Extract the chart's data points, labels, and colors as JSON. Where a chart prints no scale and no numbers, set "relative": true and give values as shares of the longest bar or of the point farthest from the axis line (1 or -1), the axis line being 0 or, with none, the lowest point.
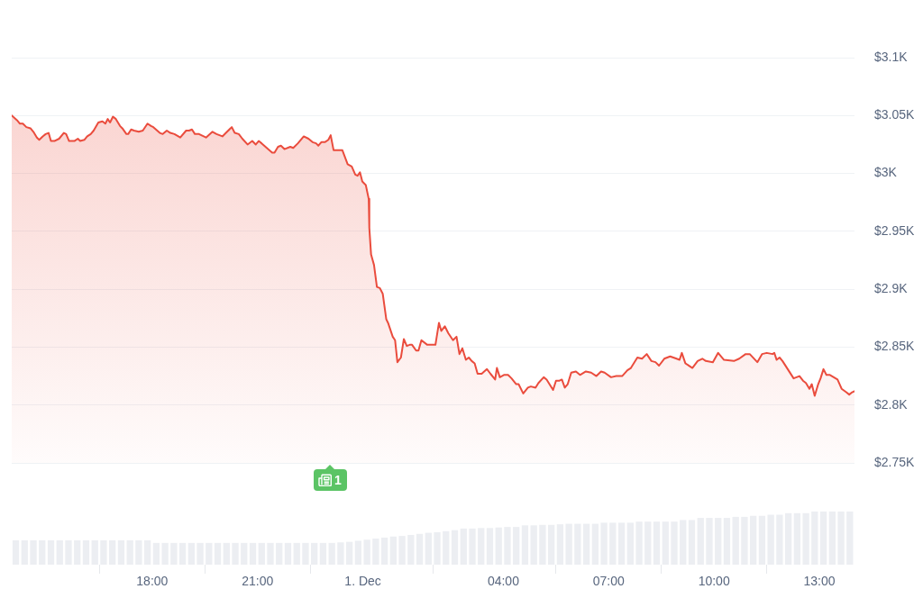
{
  "chart_data": [
    {
      "type": "area",
      "x": [
        "--11-30T14:00",
        "--11-30T14:09",
        "--11-30T14:14",
        "--11-30T14:19",
        "--11-30T14:25",
        "--11-30T14:32",
        "--11-30T14:37",
        "--11-30T14:43",
        "--11-30T14:47",
        "--11-30T14:53",
        "--11-30T14:58",
        "--11-30T15:03",
        "--11-30T15:07",
        "--11-30T15:13",
        "--11-30T15:21",
        "--11-30T15:29",
        "--11-30T15:33",
        "--11-30T15:38",
        "--11-30T15:47",
        "--11-30T15:53",
        "--11-30T15:57",
        "--11-30T16:04",
        "--11-30T16:09",
        "--11-30T16:15",
        "--11-30T16:20",
        "--11-30T16:28",
        "--11-30T16:35",
        "--11-30T16:40",
        "--11-30T16:44",
        "--11-30T16:48",
        "--11-30T16:53",
        "--11-30T16:58",
        "--11-30T17:05",
        "--11-30T17:09",
        "--11-30T17:16",
        "--11-30T17:19",
        "--11-30T17:24",
        "--11-30T17:29",
        "--11-30T17:37",
        "--11-30T17:44",
        "--11-30T17:52",
        "--11-30T17:58",
        "--11-30T18:02",
        "--11-30T18:13",
        "--11-30T18:18",
        "--11-30T18:25",
        "--11-30T18:31",
        "--11-30T18:38",
        "--11-30T18:48",
        "--11-30T18:58",
        "--11-30T19:03",
        "--11-30T19:08",
        "--11-30T19:13",
        "--11-30T19:20",
        "--11-30T19:32",
        "--11-30T19:43",
        "--11-30T19:50",
        "--11-30T20:00",
        "--11-30T20:06",
        "--11-30T20:16",
        "--11-30T20:21",
        "--11-30T20:28",
        "--11-30T20:34",
        "--11-30T20:43",
        "--11-30T20:51",
        "--11-30T20:57",
        "--11-30T21:02",
        "--11-30T21:07",
        "--11-30T21:18",
        "--11-30T21:25",
        "--11-30T21:29",
        "--11-30T21:35",
        "--11-30T21:40",
        "--11-30T21:46",
        "--11-30T21:56",
        "--11-30T22:01",
        "--11-30T22:09",
        "--11-30T22:19",
        "--11-30T22:27",
        "--11-30T22:34",
        "--11-30T22:40",
        "--11-30T22:44",
        "--11-30T22:49",
        "--11-30T22:55",
        "--11-30T23:01",
        "--11-30T23:05",
        "--11-30T23:10",
        "--11-30T23:16",
        "--11-30T23:25",
        "--11-30T23:34",
        "--11-30T23:41",
        "--11-30T23:47",
        "--11-30T23:51",
        "--11-30T23:55",
        "--11-30T23:59",
        "--12-01T00:05",
        "--12-01T00:10",
        "--12-01T00:11",
        "--12-01T00:14",
        "--12-01T00:19",
        "--12-01T00:24",
        "--12-01T00:29",
        "--12-01T00:34",
        "--12-01T00:40",
        "--12-01T00:43",
        "--12-01T00:51",
        "--12-01T00:55",
        "--12-01T00:59",
        "--12-01T01:05",
        "--12-01T01:10",
        "--12-01T01:15",
        "--12-01T01:20",
        "--12-01T01:24",
        "--12-01T01:31",
        "--12-01T01:35",
        "--12-01T01:40",
        "--12-01T01:50",
        "--12-01T02:04",
        "--12-01T02:10",
        "--12-01T02:14",
        "--12-01T02:20",
        "--12-01T02:26",
        "--12-01T02:34",
        "--12-01T02:40",
        "--12-01T02:45",
        "--12-01T02:50",
        "--12-01T02:56",
        "--12-01T03:01",
        "--12-01T03:06",
        "--12-01T03:11",
        "--12-01T03:16",
        "--12-01T03:23",
        "--12-01T03:32",
        "--12-01T03:38",
        "--12-01T03:46",
        "--12-01T03:49",
        "--12-01T03:54",
        "--12-01T04:01",
        "--12-01T04:08",
        "--12-01T04:14",
        "--12-01T04:22",
        "--12-01T04:26",
        "--12-01T04:34",
        "--12-01T04:42",
        "--12-01T04:47",
        "--12-01T04:55",
        "--12-01T05:00",
        "--12-01T05:09",
        "--12-01T05:14",
        "--12-01T05:25",
        "--12-01T05:30",
        "--12-01T05:36",
        "--12-01T05:40",
        "--12-01T05:45",
        "--12-01T05:50",
        "--12-01T05:56",
        "--12-01T06:04",
        "--12-01T06:11",
        "--12-01T06:21",
        "--12-01T06:30",
        "--12-01T06:39",
        "--12-01T06:47",
        "--12-01T06:53",
        "--12-01T07:04",
        "--12-01T07:13",
        "--12-01T07:23",
        "--12-01T07:32",
        "--12-01T07:38",
        "--12-01T07:49",
        "--12-01T07:57",
        "--12-01T08:05",
        "--12-01T08:13",
        "--12-01T08:20",
        "--12-01T08:26",
        "--12-01T08:35",
        "--12-01T08:45",
        "--12-01T08:56",
        "--12-01T09:01",
        "--12-01T09:05",
        "--12-01T09:11",
        "--12-01T09:23",
        "--12-01T09:32",
        "--12-01T09:40",
        "--12-01T09:46",
        "--12-01T09:58",
        "--12-01T10:07",
        "--12-01T10:17",
        "--12-01T10:34",
        "--12-01T10:43",
        "--12-01T10:54",
        "--12-01T11:01",
        "--12-01T11:14",
        "--12-01T11:22",
        "--12-01T11:30",
        "--12-01T11:40",
        "--12-01T11:43",
        "--12-01T11:47",
        "--12-01T11:52",
        "--12-01T11:57",
        "--12-01T12:16",
        "--12-01T12:26",
        "--12-01T12:32",
        "--12-01T12:37",
        "--12-01T12:43",
        "--12-01T12:47",
        "--12-01T12:52",
        "--12-01T12:58",
        "--12-01T13:02",
        "--12-01T13:07",
        "--12-01T13:12",
        "--12-01T13:18",
        "--12-01T13:31",
        "--12-01T13:38",
        "--12-01T13:46",
        "--12-01T13:51",
        "--12-01T13:56",
        "--12-01T14:00"
      ],
      "values": [
        3050,
        3046,
        3043,
        3043,
        3040,
        3039,
        3036,
        3031,
        3029,
        3032,
        3034,
        3035,
        3028,
        3028,
        3030,
        3035,
        3034,
        3028,
        3028,
        3030,
        3028,
        3029,
        3032,
        3034,
        3037,
        3044,
        3045,
        3043,
        3047,
        3044,
        3049,
        3047,
        3041,
        3039,
        3034,
        3034,
        3038,
        3037,
        3036,
        3037,
        3043,
        3041,
        3040,
        3035,
        3034,
        3037,
        3035,
        3034,
        3031,
        3037,
        3037,
        3038,
        3034,
        3034,
        3031,
        3036,
        3034,
        3032,
        3035,
        3040,
        3035,
        3034,
        3030,
        3025,
        3028,
        3025,
        3028,
        3026,
        3021,
        3018,
        3018,
        3023,
        3024,
        3021,
        3023,
        3022,
        3026,
        3032,
        3030,
        3027,
        3026,
        3024,
        3027,
        3027,
        3029,
        3033,
        3020,
        3020,
        3020,
        3008,
        3006,
        2999,
        2998,
        3001,
        2993,
        2990,
        2978,
        2953,
        2930,
        2921,
        2902,
        2901,
        2896,
        2874,
        2871,
        2859,
        2856,
        2837,
        2841,
        2857,
        2851,
        2852,
        2852,
        2847,
        2847,
        2856,
        2852,
        2852,
        2871,
        2864,
        2868,
        2862,
        2856,
        2859,
        2844,
        2849,
        2839,
        2841,
        2838,
        2836,
        2827,
        2827,
        2831,
        2827,
        2822,
        2832,
        2824,
        2826,
        2826,
        2823,
        2818,
        2818,
        2810,
        2815,
        2816,
        2815,
        2819,
        2824,
        2822,
        2813,
        2821,
        2821,
        2822,
        2815,
        2818,
        2828,
        2829,
        2826,
        2829,
        2828,
        2825,
        2829,
        2828,
        2824,
        2825,
        2825,
        2830,
        2832,
        2841,
        2840,
        2844,
        2838,
        2837,
        2834,
        2840,
        2842,
        2840,
        2839,
        2845,
        2836,
        2832,
        2838,
        2840,
        2838,
        2837,
        2845,
        2839,
        2838,
        2840,
        2844,
        2844,
        2837,
        2844,
        2845,
        2844,
        2845,
        2839,
        2841,
        2838,
        2823,
        2825,
        2821,
        2819,
        2814,
        2818,
        2808,
        2818,
        2823,
        2831,
        2826,
        2826,
        2822,
        2814,
        2811,
        2809,
        2811,
        2812
      ],
      "color": "#ea4c3d",
      "xlim": [
        "--11-30T14:00",
        "--12-01T14:00"
      ],
      "ylim": [
        2750,
        3100
      ],
      "yticks": [
        {
          "value": 2750,
          "label": "$2.75K"
        },
        {
          "value": 2800,
          "label": "$2.8K"
        },
        {
          "value": 2850,
          "label": "$2.85K"
        },
        {
          "value": 2900,
          "label": "$2.9K"
        },
        {
          "value": 2950,
          "label": "$2.95K"
        },
        {
          "value": 3000,
          "label": "$3K"
        },
        {
          "value": 3050,
          "label": "$3.05K"
        },
        {
          "value": 3100,
          "label": "$3.1K"
        }
      ],
      "grid": "y",
      "tick_labels": "y",
      "annotations": [
        "1"
      ]
    },
    {
      "type": "bar",
      "relative": true,
      "x": [
        "--11-30T14:07",
        "--11-30T14:22",
        "--11-30T14:37",
        "--11-30T14:52",
        "--11-30T15:07",
        "--11-30T15:22",
        "--11-30T15:37",
        "--11-30T15:52",
        "--11-30T16:07",
        "--11-30T16:22",
        "--11-30T16:37",
        "--11-30T16:52",
        "--11-30T17:07",
        "--11-30T17:22",
        "--11-30T17:37",
        "--11-30T17:52",
        "--11-30T18:07",
        "--11-30T18:22",
        "--11-30T18:37",
        "--11-30T18:52",
        "--11-30T19:07",
        "--11-30T19:22",
        "--11-30T19:37",
        "--11-30T19:52",
        "--11-30T20:07",
        "--11-30T20:22",
        "--11-30T20:37",
        "--11-30T20:52",
        "--11-30T21:07",
        "--11-30T21:22",
        "--11-30T21:37",
        "--11-30T21:52",
        "--11-30T22:07",
        "--11-30T22:22",
        "--11-30T22:37",
        "--11-30T22:52",
        "--11-30T23:07",
        "--11-30T23:22",
        "--11-30T23:37",
        "--11-30T23:52",
        "--12-01T00:07",
        "--12-01T00:22",
        "--12-01T00:37",
        "--12-01T00:52",
        "--12-01T01:07",
        "--12-01T01:22",
        "--12-01T01:37",
        "--12-01T01:52",
        "--12-01T02:07",
        "--12-01T02:22",
        "--12-01T02:37",
        "--12-01T02:52",
        "--12-01T03:07",
        "--12-01T03:22",
        "--12-01T03:37",
        "--12-01T03:52",
        "--12-01T04:07",
        "--12-01T04:22",
        "--12-01T04:37",
        "--12-01T04:52",
        "--12-01T05:07",
        "--12-01T05:22",
        "--12-01T05:37",
        "--12-01T05:52",
        "--12-01T06:07",
        "--12-01T06:22",
        "--12-01T06:37",
        "--12-01T06:52",
        "--12-01T07:07",
        "--12-01T07:22",
        "--12-01T07:37",
        "--12-01T07:52",
        "--12-01T08:07",
        "--12-01T08:22",
        "--12-01T08:37",
        "--12-01T08:52",
        "--12-01T09:07",
        "--12-01T09:22",
        "--12-01T09:37",
        "--12-01T09:52",
        "--12-01T10:07",
        "--12-01T10:22",
        "--12-01T10:37",
        "--12-01T10:52",
        "--12-01T11:07",
        "--12-01T11:22",
        "--12-01T11:37",
        "--12-01T11:52",
        "--12-01T12:07",
        "--12-01T12:22",
        "--12-01T12:37",
        "--12-01T12:52",
        "--12-01T13:07",
        "--12-01T13:22",
        "--12-01T13:37",
        "--12-01T13:52"
      ],
      "values": [
        0.46,
        0.46,
        0.46,
        0.46,
        0.46,
        0.46,
        0.46,
        0.46,
        0.46,
        0.46,
        0.46,
        0.46,
        0.46,
        0.46,
        0.46,
        0.46,
        0.41,
        0.41,
        0.41,
        0.41,
        0.41,
        0.41,
        0.41,
        0.41,
        0.41,
        0.41,
        0.41,
        0.41,
        0.41,
        0.41,
        0.41,
        0.41,
        0.41,
        0.41,
        0.41,
        0.41,
        0.41,
        0.42,
        0.43,
        0.45,
        0.47,
        0.49,
        0.51,
        0.53,
        0.54,
        0.56,
        0.58,
        0.6,
        0.61,
        0.63,
        0.65,
        0.68,
        0.68,
        0.69,
        0.69,
        0.7,
        0.71,
        0.71,
        0.74,
        0.74,
        0.75,
        0.75,
        0.76,
        0.77,
        0.77,
        0.77,
        0.77,
        0.79,
        0.79,
        0.79,
        0.79,
        0.81,
        0.81,
        0.81,
        0.81,
        0.81,
        0.84,
        0.84,
        0.88,
        0.88,
        0.88,
        0.88,
        0.9,
        0.9,
        0.92,
        0.92,
        0.94,
        0.94,
        0.97,
        0.97,
        0.97,
        1,
        1,
        1,
        1,
        1
      ],
      "color": "#eceef2",
      "xlim": [
        "--11-30T14:00",
        "--12-01T14:00"
      ],
      "xticks": [
        {
          "value": "--11-30T18:00",
          "label": "18:00"
        },
        {
          "value": "--11-30T21:00",
          "label": "21:00"
        },
        {
          "value": "--12-01T00:00",
          "label": "1. Dec"
        },
        {
          "value": "--12-01T04:00",
          "label": "04:00"
        },
        {
          "value": "--12-01T07:00",
          "label": "07:00"
        },
        {
          "value": "--12-01T10:00",
          "label": "10:00"
        },
        {
          "value": "--12-01T13:00",
          "label": "13:00"
        }
      ]
    }
  ]
}
